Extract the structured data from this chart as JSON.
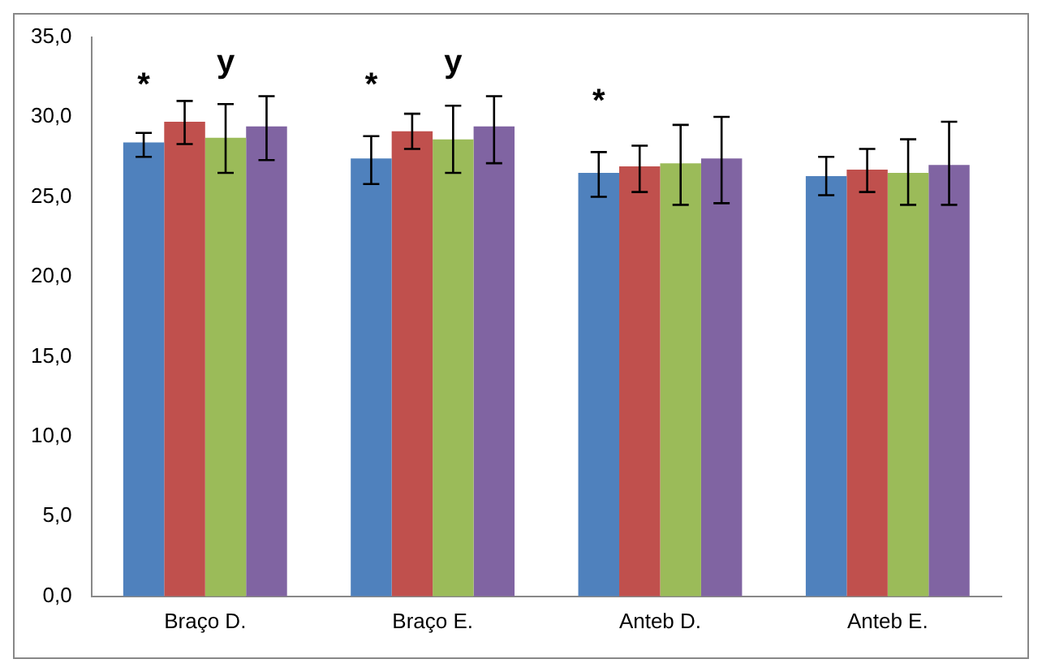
{
  "chart_data": {
    "type": "bar",
    "categories": [
      "Braço D.",
      "Braço E.",
      "Anteb D.",
      "Anteb E."
    ],
    "series": [
      {
        "color": "#4f81bd",
        "values": [
          28.4,
          27.4,
          26.5,
          26.3
        ],
        "errors": [
          [
            27.5,
            29.0
          ],
          [
            25.8,
            28.8
          ],
          [
            25.0,
            27.8
          ],
          [
            25.1,
            27.5
          ]
        ]
      },
      {
        "color": "#c0504d",
        "values": [
          29.7,
          29.1,
          26.9,
          26.7
        ],
        "errors": [
          [
            28.3,
            31.0
          ],
          [
            28.0,
            30.2
          ],
          [
            25.3,
            28.2
          ],
          [
            25.3,
            28.0
          ]
        ]
      },
      {
        "color": "#9bbb59",
        "values": [
          28.7,
          28.6,
          27.1,
          26.5
        ],
        "errors": [
          [
            26.5,
            30.8
          ],
          [
            26.5,
            30.7
          ],
          [
            24.5,
            29.5
          ],
          [
            24.5,
            28.6
          ]
        ]
      },
      {
        "color": "#8064a2",
        "values": [
          29.4,
          29.4,
          27.4,
          27.0
        ],
        "errors": [
          [
            27.3,
            31.3
          ],
          [
            27.1,
            31.3
          ],
          [
            24.6,
            30.0
          ],
          [
            24.5,
            29.7
          ]
        ]
      }
    ],
    "ylim": [
      0,
      35
    ],
    "yticks": [
      {
        "value": 0,
        "label": "0,0"
      },
      {
        "value": 5,
        "label": "5,0"
      },
      {
        "value": 10,
        "label": "10,0"
      },
      {
        "value": 15,
        "label": "15,0"
      },
      {
        "value": 20,
        "label": "20,0"
      },
      {
        "value": 25,
        "label": "25,0"
      },
      {
        "value": 30,
        "label": "30,0"
      },
      {
        "value": 35,
        "label": "35,0"
      }
    ],
    "annotations": [
      "*",
      "y",
      "*",
      "y",
      "*"
    ],
    "grid": false,
    "legend": false
  }
}
